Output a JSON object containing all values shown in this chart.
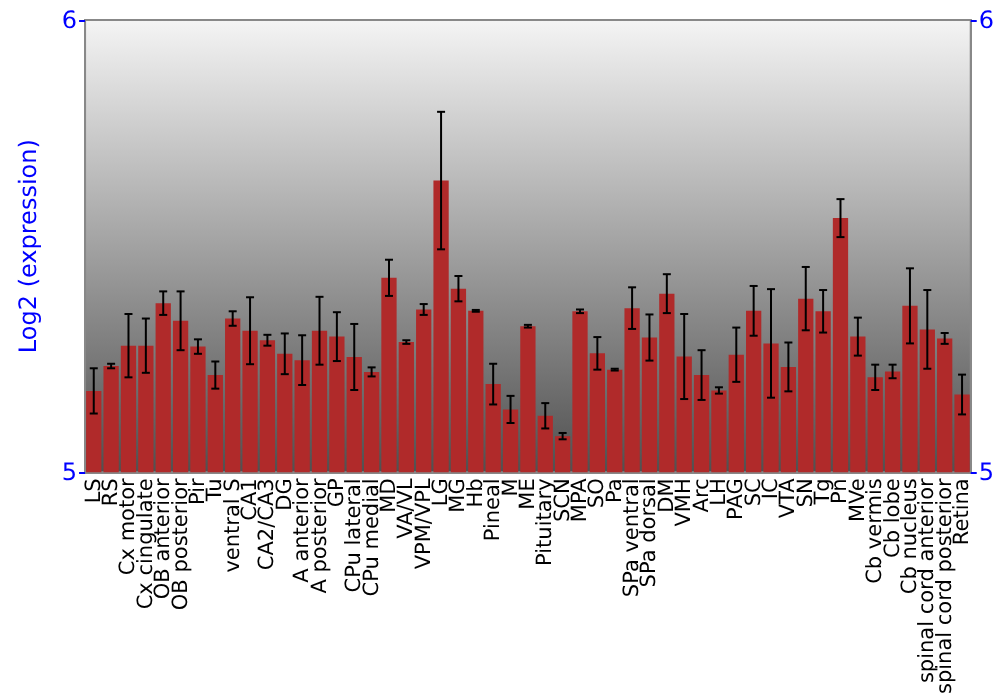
{
  "chart_data": {
    "type": "bar",
    "ylabel": "Log2 (expression)",
    "categories": [
      "LS",
      "RS",
      "Cx motor",
      "Cx cingulate",
      "OB anterior",
      "OB posterior",
      "Pir",
      "Tu",
      "ventral S",
      "CA1",
      "CA2/CA3",
      "DG",
      "A anterior",
      "A posterior",
      "GP",
      "CPu lateral",
      "CPu medial",
      "MD",
      "VA/VL",
      "VPM/VPL",
      "LG",
      "MG",
      "Hb",
      "Pineal",
      "M",
      "ME",
      "Pituitary",
      "SCN",
      "MPA",
      "SO",
      "Pa",
      "SPa ventral",
      "SPa dorsal",
      "DM",
      "VMH",
      "Arc",
      "LH",
      "PAG",
      "SC",
      "IC",
      "VTA",
      "SN",
      "Tg",
      "Pn",
      "MVe",
      "Cb vermis",
      "Cb lobe",
      "Cb nucleus",
      "spinal cord anterior",
      "spinal cord posterior",
      "Retina"
    ],
    "series": [
      {
        "color": "#b02a2a",
        "values": [
          5.18,
          5.235,
          5.28,
          5.28,
          5.374,
          5.335,
          5.278,
          5.215,
          5.34,
          5.313,
          5.292,
          5.262,
          5.248,
          5.313,
          5.3,
          5.255,
          5.222,
          5.43,
          5.288,
          5.36,
          5.645,
          5.406,
          5.357,
          5.195,
          5.139,
          5.323,
          5.125,
          5.08,
          5.356,
          5.263,
          5.227,
          5.363,
          5.298,
          5.395,
          5.256,
          5.215,
          5.181,
          5.26,
          5.357,
          5.285,
          5.233,
          5.384,
          5.356,
          5.562,
          5.3,
          5.21,
          5.223,
          5.368,
          5.316,
          5.296,
          5.172
        ],
        "errors": [
          0.05,
          0.005,
          0.07,
          0.06,
          0.026,
          0.065,
          0.016,
          0.03,
          0.016,
          0.074,
          0.012,
          0.045,
          0.055,
          0.075,
          0.054,
          0.073,
          0.01,
          0.04,
          0.004,
          0.012,
          0.152,
          0.028,
          0.002,
          0.045,
          0.03,
          0.003,
          0.028,
          0.007,
          0.004,
          0.036,
          0.002,
          0.046,
          0.051,
          0.043,
          0.094,
          0.055,
          0.007,
          0.06,
          0.055,
          0.12,
          0.054,
          0.07,
          0.047,
          0.042,
          0.042,
          0.028,
          0.015,
          0.083,
          0.087,
          0.012,
          0.044
        ]
      }
    ],
    "ylim": [
      5,
      6
    ],
    "yticks": [
      5,
      6
    ],
    "y2lim": [
      5,
      6
    ],
    "y2ticks": [
      5,
      6
    ],
    "grid": false
  }
}
